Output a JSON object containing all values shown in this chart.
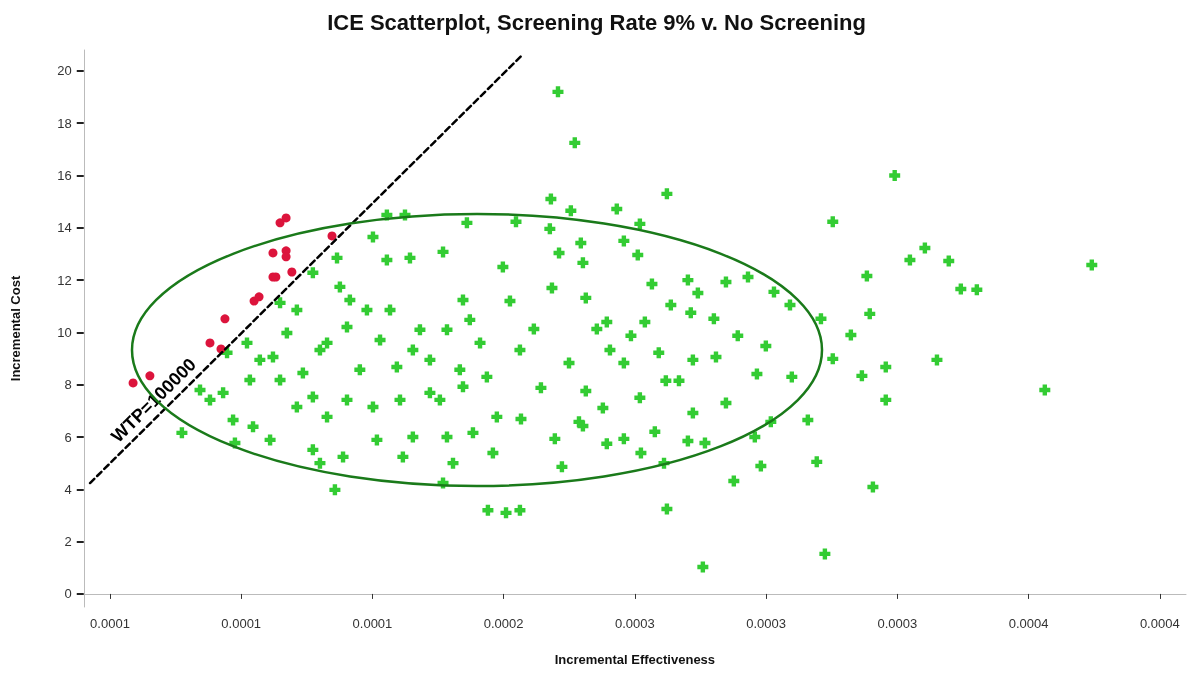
{
  "chart_data": {
    "type": "scatter",
    "title": "ICE Scatterplot, Screening Rate 9% v. No Screening",
    "xlabel": "Incremental Effectiveness",
    "ylabel": "Incremental Cost",
    "xlim": [
      4e-05,
      0.00046
    ],
    "xticks": [
      {
        "value": 5e-05,
        "label": "0.0001"
      },
      {
        "value": 0.0001,
        "label": "0.0001"
      },
      {
        "value": 0.00015,
        "label": "0.0001"
      },
      {
        "value": 0.0002,
        "label": "0.0002"
      },
      {
        "value": 0.00025,
        "label": "0.0003"
      },
      {
        "value": 0.0003,
        "label": "0.0003"
      },
      {
        "value": 0.00035,
        "label": "0.0003"
      },
      {
        "value": 0.0004,
        "label": "0.0004"
      },
      {
        "value": 0.00045,
        "label": "0.0004"
      }
    ],
    "ylim": [
      -0.5,
      20.8
    ],
    "yticks": [
      0,
      2,
      4,
      6,
      8,
      10,
      12,
      14,
      16,
      18,
      20
    ],
    "annotations": [
      "WTP=100000"
    ],
    "series": [
      {
        "color": "#33cc33",
        "marker": "cross",
        "x": [
          0.0002207,
          0.0002271,
          0.000349,
          0.0004241,
          0.0004062,
          0.0003224,
          0.0002759,
          0.0002622,
          0.000194,
          0.0002009,
          0.0002062,
          0.0003254,
          0.0003605,
          0.0003548,
          0.0003696,
          0.0003742,
          0.0003803,
          0.0003384,
          0.0003395,
          0.0003323,
          0.0003254,
          0.0003365,
          0.0003456,
          0.0003456,
          0.0003651,
          0.0003159,
          0.0003193,
          0.0003407,
          0.0002877,
          0.000298,
          0.0002622,
          0.000218,
          0.0002256,
          0.0002431,
          0.0002957,
          0.0003018,
          0.0003098,
          0.0002999,
          0.0002965,
          0.0002892,
          0.000303,
          0.0002931,
          0.0003091,
          0.0003209,
          0.0002847,
          0.0002702,
          0.000274,
          0.0002801,
          0.0002809,
          0.0002847,
          0.0002721,
          0.0002702,
          0.0002767,
          0.0002611,
          0.0002523,
          0.0002222,
          0.0002458,
          0.0002576,
          0.0002393,
          0.0002668,
          0.0002618,
          0.0002721,
          0.0002591,
          0.0002519,
          0.0002565,
          0.0002637,
          0.0002713,
          0.0002511,
          0.0002458,
          0.0002294,
          0.0002176,
          0.0002047,
          0.0002519,
          0.0002485,
          0.0002393,
          0.0002313,
          0.0002538,
          0.0002378,
          0.0002302,
          0.0002195,
          7.74e-05,
          8.81e-05,
          9.31e-05,
          9.69e-05,
          9.76e-05,
          0.0001045,
          0.000111,
          9.46e-05,
          0.0001022,
          0.0001071,
          0.0001148,
          0.0001273,
          0.0001365,
          0.0001502,
          0.0001555,
          0.0001624,
          0.0001769,
          0.000186,
          0.0001555,
          0.0001643,
          0.0001376,
          0.0001212,
          0.0001174,
          0.0001121,
          0.0001148,
          0.0001235,
          0.0001327,
          0.0001403,
          0.0001479,
          0.0001529,
          0.0001593,
          0.0001654,
          0.0001719,
          0.0001784,
          0.0001845,
          0.000191,
          0.0001936,
          0.0001845,
          0.0001719,
          0.0001605,
          0.0001502,
          0.0001403,
          0.0001327,
          0.0001273,
          0.0001212,
          0.0001273,
          0.00013,
          0.0001357,
          0.0001388,
          0.0001517,
          0.0001616,
          0.0001654,
          0.0001807,
          0.0001769,
          0.0001784,
          0.0001883,
          0.0001959,
          0.0001974,
          0.0002024,
          0.0002115,
          0.0002184,
          0.0002249,
          0.0002142,
          0.0002066,
          0.0002287,
          0.0002355,
          0.0002405,
          0.0002458,
          0.0002313,
          0.0002211,
          0.0002302,
          0.0001997,
          0.00013,
          0.0001452,
          0.0001681,
          0.0001833,
          0.0001567,
          0.0001757,
          0.0001871,
          0.0002062,
          0.0001414,
          0.0001033,
          8.43e-05
        ],
        "values": [
          19.2,
          17.25,
          16.0,
          12.58,
          7.8,
          1.53,
          1.03,
          3.25,
          3.2,
          3.1,
          3.2,
          14.23,
          13.23,
          12.77,
          12.73,
          11.66,
          11.63,
          12.16,
          10.71,
          9.9,
          8.99,
          8.34,
          8.68,
          7.42,
          8.95,
          6.65,
          5.05,
          4.09,
          4.32,
          4.89,
          15.3,
          15.1,
          14.65,
          14.72,
          6.0,
          6.58,
          8.3,
          9.48,
          8.41,
          9.87,
          11.55,
          12.12,
          11.05,
          10.52,
          11.93,
          12.0,
          11.51,
          10.52,
          9.06,
          7.3,
          6.92,
          5.85,
          5.77,
          5.0,
          5.39,
          4.86,
          5.93,
          6.2,
          5.74,
          8.15,
          8.15,
          8.95,
          9.22,
          7.5,
          11.85,
          11.05,
          10.75,
          12.96,
          13.5,
          13.42,
          13.96,
          14.23,
          14.15,
          9.87,
          10.4,
          11.32,
          10.4,
          7.11,
          6.42,
          5.93,
          6.16,
          7.42,
          7.69,
          6.65,
          5.77,
          6.39,
          5.89,
          9.22,
          9.6,
          8.95,
          11.13,
          12.28,
          12.85,
          13.65,
          14.49,
          14.49,
          13.08,
          14.19,
          12.77,
          12.85,
          11.74,
          10.86,
          9.98,
          9.06,
          8.18,
          8.45,
          9.6,
          10.21,
          10.86,
          9.71,
          8.68,
          9.33,
          8.95,
          10.1,
          11.24,
          9.6,
          8.3,
          7.92,
          7.69,
          7.42,
          7.15,
          7.42,
          6.77,
          7.53,
          7.15,
          5.51,
          5.0,
          3.98,
          5.24,
          5.89,
          5.24,
          6.0,
          5.0,
          4.24,
          6.0,
          6.16,
          5.39,
          6.77,
          11.2,
          10.13,
          11.7,
          8.83,
          7.88,
          6.69,
          6.58,
          10.13,
          9.33,
          8.83,
          7.76,
          13.04,
          12.66,
          12.5,
          9.33,
          8.57,
          10.1,
          8.57,
          10.86,
          7.42,
          10.48,
          9.33,
          11.24,
          8.18,
          7.8
        ]
      },
      {
        "color": "#dc143c",
        "marker": "circle",
        "x": [
          5.88e-05,
          6.52e-05,
          8.81e-05,
          9.23e-05,
          9.38e-05,
          0.0001049,
          0.0001068,
          0.0001121,
          0.0001132,
          0.0001193,
          0.0001121,
          0.0001171,
          0.0001171,
          0.0001148,
          0.0001171,
          0.0001346
        ],
        "values": [
          8.07,
          8.34,
          9.6,
          9.37,
          10.52,
          11.2,
          11.36,
          12.12,
          12.12,
          12.31,
          13.04,
          13.12,
          12.89,
          14.19,
          14.38,
          13.69
        ]
      },
      {
        "type": "line",
        "color": "#000000",
        "marker": "none",
        "line_style": "dashed",
        "x": [
          4.24e-05,
          0.000207
        ],
        "values": [
          4.24,
          20.6
        ]
      }
    ]
  }
}
